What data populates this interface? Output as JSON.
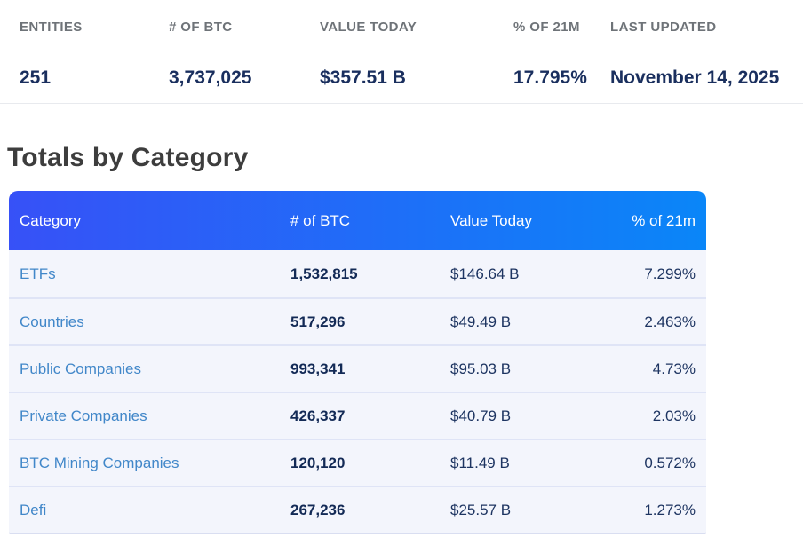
{
  "summary": {
    "stats": [
      {
        "label": "ENTITIES",
        "value": "251"
      },
      {
        "label": "# OF BTC",
        "value": "3,737,025"
      },
      {
        "label": "VALUE TODAY",
        "value": "$357.51 B"
      },
      {
        "label": "% OF 21M",
        "value": "17.795%"
      },
      {
        "label": "LAST UPDATED",
        "value": "November 14, 2025"
      }
    ]
  },
  "section": {
    "title": "Totals by Category"
  },
  "table": {
    "columns": [
      "Category",
      "# of BTC",
      "Value Today",
      "% of 21m"
    ],
    "rows": [
      {
        "category": "ETFs",
        "btc": "1,532,815",
        "value_today": "$146.64 B",
        "pct_of_21m": "7.299%"
      },
      {
        "category": "Countries",
        "btc": "517,296",
        "value_today": "$49.49 B",
        "pct_of_21m": "2.463%"
      },
      {
        "category": "Public Companies",
        "btc": "993,341",
        "value_today": "$95.03 B",
        "pct_of_21m": "4.73%"
      },
      {
        "category": "Private Companies",
        "btc": "426,337",
        "value_today": "$40.79 B",
        "pct_of_21m": "2.03%"
      },
      {
        "category": "BTC Mining Companies",
        "btc": "120,120",
        "value_today": "$11.49 B",
        "pct_of_21m": "0.572%"
      },
      {
        "category": "Defi",
        "btc": "267,236",
        "value_today": "$25.57 B",
        "pct_of_21m": "1.273%"
      }
    ]
  },
  "colors": {
    "header_gradient_start": "#3751f7",
    "header_gradient_end": "#0a86f8",
    "category_link": "#4187c9",
    "value_navy": "#1a2f5e",
    "row_background": "#f3f5fc"
  }
}
